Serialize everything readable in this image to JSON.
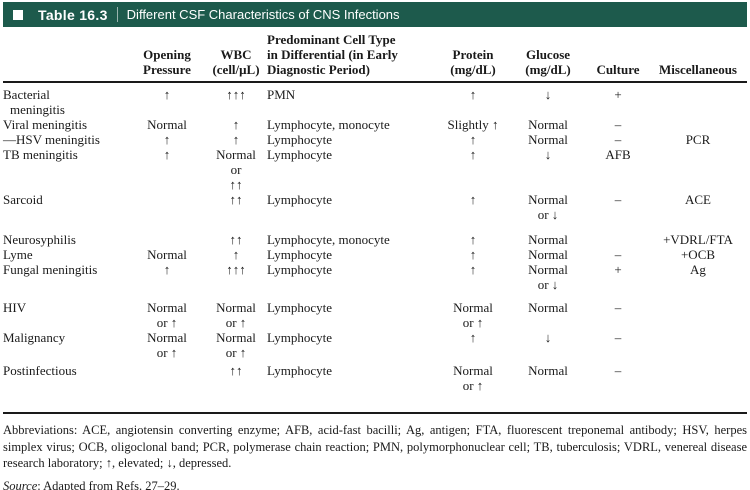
{
  "title_bar": {
    "label": "Table 16.3",
    "title": "Different CSF Characteristics of CNS Infections"
  },
  "colors": {
    "header_bar": "#1d5a4c",
    "rule": "#1a1a1a"
  },
  "table": {
    "columns": [
      {
        "key": "condition",
        "align": "left",
        "header_lines": []
      },
      {
        "key": "opening_pressure",
        "align": "center",
        "header_lines": [
          "Opening",
          "Pressure"
        ]
      },
      {
        "key": "wbc",
        "align": "center",
        "header_lines": [
          "WBC",
          "(cell/μL)"
        ]
      },
      {
        "key": "cell_type",
        "align": "left",
        "header_lines": [
          "Predominant Cell Type",
          "in Differential (in Early",
          "Diagnostic Period)"
        ]
      },
      {
        "key": "protein",
        "align": "center",
        "header_lines": [
          "Protein",
          "(mg/dL)"
        ]
      },
      {
        "key": "glucose",
        "align": "center",
        "header_lines": [
          "Glucose",
          "(mg/dL)"
        ]
      },
      {
        "key": "culture",
        "align": "center",
        "header_lines": [
          "Culture"
        ]
      },
      {
        "key": "misc",
        "align": "center",
        "header_lines": [
          "Miscellaneous"
        ]
      }
    ],
    "rows": [
      {
        "condition": [
          "Bacterial",
          "meningitis"
        ],
        "opening_pressure": [
          "↑"
        ],
        "wbc": [
          "↑↑↑"
        ],
        "cell_type": [
          "PMN"
        ],
        "protein": [
          "↑"
        ],
        "glucose": [
          "↓"
        ],
        "culture": [
          "+"
        ],
        "misc": []
      },
      {
        "condition": [
          "Viral meningitis"
        ],
        "opening_pressure": [
          "Normal"
        ],
        "wbc": [
          "↑"
        ],
        "cell_type": [
          "Lymphocyte, monocyte"
        ],
        "protein": [
          "Slightly ↑"
        ],
        "glucose": [
          "Normal"
        ],
        "culture": [
          "–"
        ],
        "misc": []
      },
      {
        "condition": [
          "—HSV meningitis"
        ],
        "opening_pressure": [
          "↑"
        ],
        "wbc": [
          "↑"
        ],
        "cell_type": [
          "Lymphocyte"
        ],
        "protein": [
          "↑"
        ],
        "glucose": [
          "Normal"
        ],
        "culture": [
          "–"
        ],
        "misc": [
          "PCR"
        ]
      },
      {
        "condition": [
          "TB meningitis"
        ],
        "opening_pressure": [
          "↑"
        ],
        "wbc": [
          "Normal",
          "or",
          "↑↑"
        ],
        "cell_type": [
          "Lymphocyte"
        ],
        "protein": [
          "↑"
        ],
        "glucose": [
          "↓"
        ],
        "culture": [
          "AFB"
        ],
        "misc": []
      },
      {
        "condition": [
          "Sarcoid"
        ],
        "opening_pressure": [],
        "wbc": [
          "↑↑"
        ],
        "cell_type": [
          "Lymphocyte"
        ],
        "protein": [
          "↑"
        ],
        "glucose": [
          "Normal",
          "or ↓"
        ],
        "culture": [
          "–"
        ],
        "misc": [
          "ACE"
        ]
      },
      {
        "condition": [
          "Neurosyphilis"
        ],
        "opening_pressure": [],
        "wbc": [
          "↑↑"
        ],
        "cell_type": [
          "Lymphocyte, monocyte"
        ],
        "protein": [
          "↑"
        ],
        "glucose": [
          "Normal"
        ],
        "culture": [],
        "misc": [
          "+VDRL/FTA"
        ]
      },
      {
        "condition": [
          "Lyme"
        ],
        "opening_pressure": [
          "Normal"
        ],
        "wbc": [
          "↑"
        ],
        "cell_type": [
          "Lymphocyte"
        ],
        "protein": [
          "↑"
        ],
        "glucose": [
          "Normal"
        ],
        "culture": [
          "–"
        ],
        "misc": [
          "+OCB"
        ]
      },
      {
        "condition": [
          "Fungal meningitis"
        ],
        "opening_pressure": [
          "↑"
        ],
        "wbc": [
          "↑↑↑"
        ],
        "cell_type": [
          "Lymphocyte"
        ],
        "protein": [
          "↑"
        ],
        "glucose": [
          "Normal",
          "or ↓"
        ],
        "culture": [
          "+"
        ],
        "misc": [
          "Ag"
        ]
      },
      {
        "condition": [
          "HIV"
        ],
        "opening_pressure": [
          "Normal",
          "or ↑"
        ],
        "wbc": [
          "Normal",
          "or ↑"
        ],
        "cell_type": [
          "Lymphocyte"
        ],
        "protein": [
          "Normal",
          "or ↑"
        ],
        "glucose": [
          "Normal"
        ],
        "culture": [
          "–"
        ],
        "misc": []
      },
      {
        "condition": [
          "Malignancy"
        ],
        "opening_pressure": [
          "Normal",
          "or ↑"
        ],
        "wbc": [
          "Normal",
          "or ↑"
        ],
        "cell_type": [
          "Lymphocyte"
        ],
        "protein": [
          "↑"
        ],
        "glucose": [
          "↓"
        ],
        "culture": [
          "–"
        ],
        "misc": []
      },
      {
        "condition": [
          "Postinfectious"
        ],
        "opening_pressure": [],
        "wbc": [
          "↑↑"
        ],
        "cell_type": [
          "Lymphocyte"
        ],
        "protein": [
          "Normal",
          "or ↑"
        ],
        "glucose": [
          "Normal"
        ],
        "culture": [
          "–"
        ],
        "misc": []
      }
    ]
  },
  "footnotes": {
    "abbreviations": "Abbreviations: ACE, angiotensin converting enzyme; AFB, acid-fast bacilli; Ag, antigen; FTA, fluorescent treponemal antibody; HSV, herpes simplex virus; OCB, oligoclonal band; PCR, polymerase chain reaction; PMN, polymorphonuclear cell; TB, tuberculosis; VDRL, venereal disease research laboratory; ↑, elevated; ↓, depressed.",
    "source_label": "Source",
    "source_text": ": Adapted from Refs. 27–29."
  }
}
